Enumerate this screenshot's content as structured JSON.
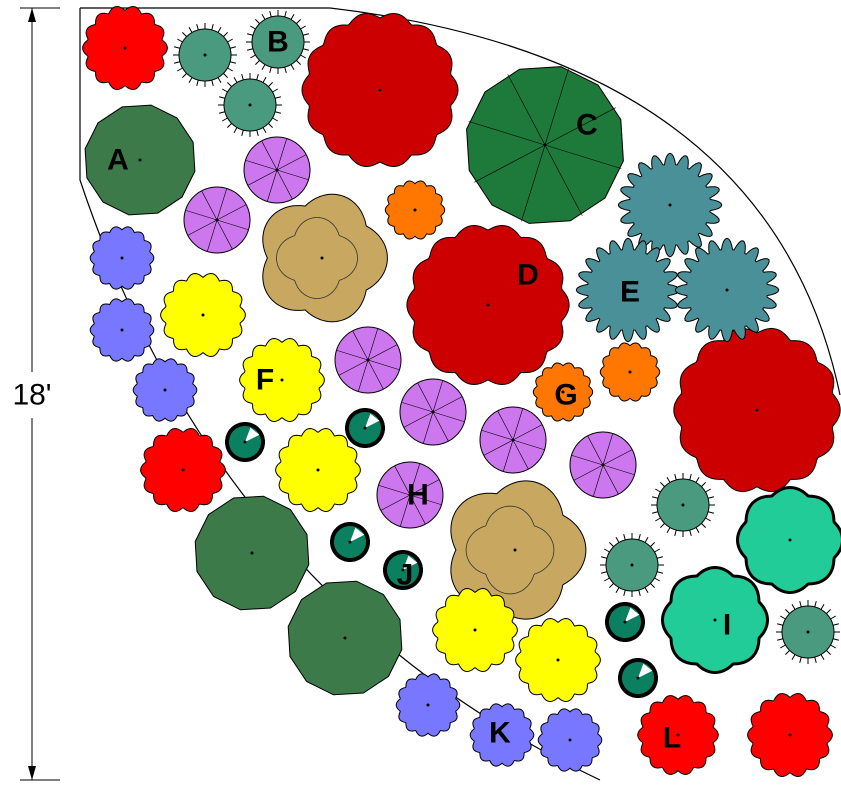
{
  "dimension_label": "18'",
  "labels": [
    "A",
    "B",
    "C",
    "D",
    "E",
    "F",
    "G",
    "H",
    "I",
    "J",
    "K",
    "L"
  ]
}
